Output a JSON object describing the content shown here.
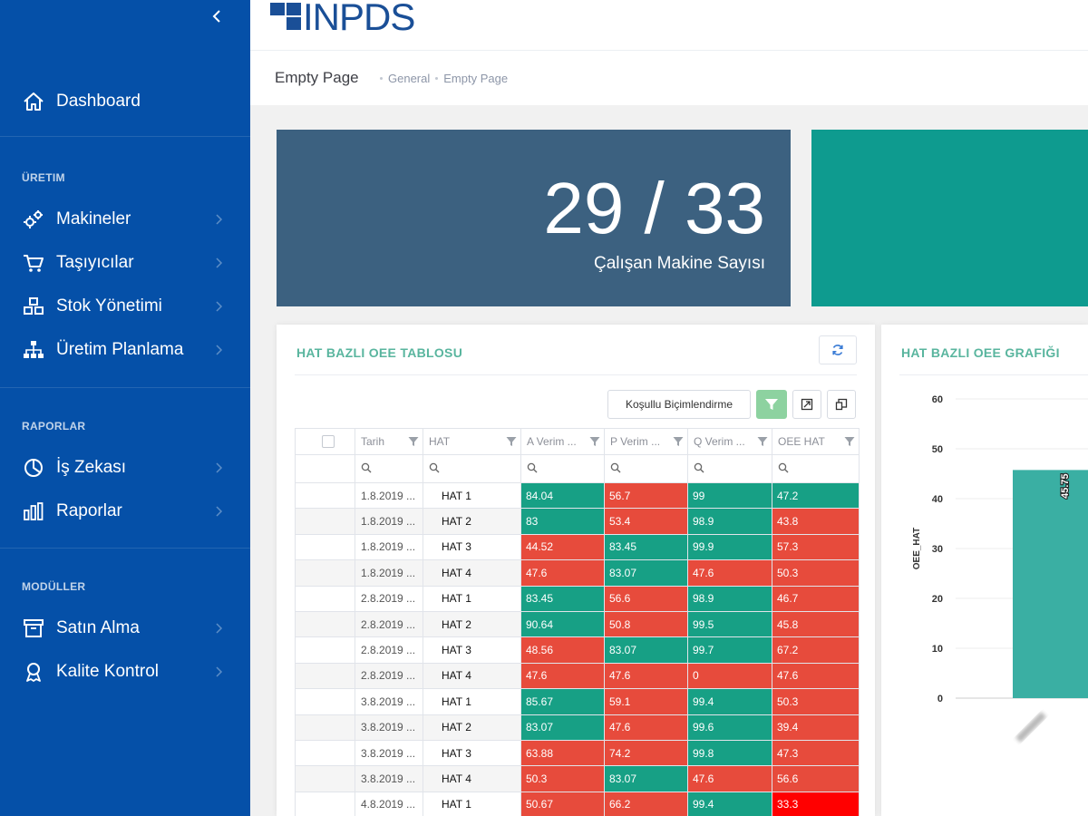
{
  "sidebar": {
    "items": [
      {
        "label": "Dashboard",
        "icon": "home-icon"
      },
      {
        "label": "Makineler",
        "icon": "gears-icon"
      },
      {
        "label": "Taşıyıcılar",
        "icon": "cart-icon"
      },
      {
        "label": "Stok Yönetimi",
        "icon": "cubes-icon"
      },
      {
        "label": "Üretim Planlama",
        "icon": "sitemap-icon"
      },
      {
        "label": "İş Zekası",
        "icon": "pie-icon"
      },
      {
        "label": "Raporlar",
        "icon": "bar-chart-icon"
      },
      {
        "label": "Satın Alma",
        "icon": "archive-icon"
      },
      {
        "label": "Kalite Kontrol",
        "icon": "award-icon"
      }
    ],
    "sections": [
      "ÜRETIM",
      "RAPORLAR",
      "MODÜLLER"
    ]
  },
  "header": {
    "logo_text": "INPDS"
  },
  "subheader": {
    "title": "Empty Page",
    "breadcrumb": [
      "General",
      "Empty Page"
    ]
  },
  "kpi": {
    "value": "29 / 33",
    "label": "Çalışan Makine Sayısı"
  },
  "colors": {
    "sidebar": "#0550a8",
    "kpi1": "#3c6180",
    "kpi2": "#0e9b8f",
    "green": "#17a085",
    "red": "#e74b3c",
    "title_green": "#59b59e"
  },
  "table_portlet": {
    "title": "HAT BAZLI OEE TABLOSU",
    "toolbar": {
      "conditional_label": "Koşullu Biçimlendirme"
    },
    "columns": [
      "Tarih",
      "HAT",
      "A Verim ...",
      "P Verim ...",
      "Q Verim ...",
      "OEE HAT"
    ],
    "rows": [
      {
        "date": "1.8.2019 ...",
        "hat": "HAT 1",
        "a": "84.04",
        "p": "56.7",
        "q": "99",
        "oee": "47.2",
        "c": [
          "g",
          "r",
          "g",
          "g"
        ]
      },
      {
        "date": "1.8.2019 ...",
        "hat": "HAT 2",
        "a": "83",
        "p": "53.4",
        "q": "98.9",
        "oee": "43.8",
        "c": [
          "g",
          "r",
          "g",
          "r"
        ]
      },
      {
        "date": "1.8.2019 ...",
        "hat": "HAT 3",
        "a": "44.52",
        "p": "83.45",
        "q": "99.9",
        "oee": "57.3",
        "c": [
          "r",
          "g",
          "g",
          "r"
        ]
      },
      {
        "date": "1.8.2019 ...",
        "hat": "HAT 4",
        "a": "47.6",
        "p": "83.07",
        "q": "47.6",
        "oee": "50.3",
        "c": [
          "r",
          "g",
          "r",
          "r"
        ]
      },
      {
        "date": "2.8.2019 ...",
        "hat": "HAT 1",
        "a": "83.45",
        "p": "56.6",
        "q": "98.9",
        "oee": "46.7",
        "c": [
          "g",
          "r",
          "g",
          "r"
        ]
      },
      {
        "date": "2.8.2019 ...",
        "hat": "HAT 2",
        "a": "90.64",
        "p": "50.8",
        "q": "99.5",
        "oee": "45.8",
        "c": [
          "g",
          "r",
          "g",
          "r"
        ]
      },
      {
        "date": "2.8.2019 ...",
        "hat": "HAT 3",
        "a": "48.56",
        "p": "83.07",
        "q": "99.7",
        "oee": "67.2",
        "c": [
          "r",
          "g",
          "g",
          "r"
        ]
      },
      {
        "date": "2.8.2019 ...",
        "hat": "HAT 4",
        "a": "47.6",
        "p": "47.6",
        "q": "0",
        "oee": "47.6",
        "c": [
          "r",
          "r",
          "r",
          "r"
        ]
      },
      {
        "date": "3.8.2019 ...",
        "hat": "HAT 1",
        "a": "85.67",
        "p": "59.1",
        "q": "99.4",
        "oee": "50.3",
        "c": [
          "g",
          "r",
          "g",
          "r"
        ]
      },
      {
        "date": "3.8.2019 ...",
        "hat": "HAT 2",
        "a": "83.07",
        "p": "47.6",
        "q": "99.6",
        "oee": "39.4",
        "c": [
          "g",
          "r",
          "g",
          "r"
        ]
      },
      {
        "date": "3.8.2019 ...",
        "hat": "HAT 3",
        "a": "63.88",
        "p": "74.2",
        "q": "99.8",
        "oee": "47.3",
        "c": [
          "r",
          "r",
          "g",
          "r"
        ]
      },
      {
        "date": "3.8.2019 ...",
        "hat": "HAT 4",
        "a": "50.3",
        "p": "83.07",
        "q": "47.6",
        "oee": "56.6",
        "c": [
          "r",
          "g",
          "r",
          "r"
        ]
      },
      {
        "date": "4.8.2019 ...",
        "hat": "HAT 1",
        "a": "50.67",
        "p": "66.2",
        "q": "99.4",
        "oee": "33.3",
        "c": [
          "r",
          "r",
          "g",
          "rr"
        ]
      }
    ]
  },
  "chart_portlet": {
    "title": "HAT BAZLI OEE GRAFIĞI"
  },
  "chart_data": {
    "type": "bar",
    "ylabel": "OEE_HAT",
    "ylim": [
      0,
      60
    ],
    "yticks": [
      0,
      10,
      20,
      30,
      40,
      50,
      60
    ],
    "categories": [
      ""
    ],
    "values": [
      45.75
    ],
    "data_labels": [
      "45.75"
    ],
    "bar_color": "#3aafa3"
  }
}
